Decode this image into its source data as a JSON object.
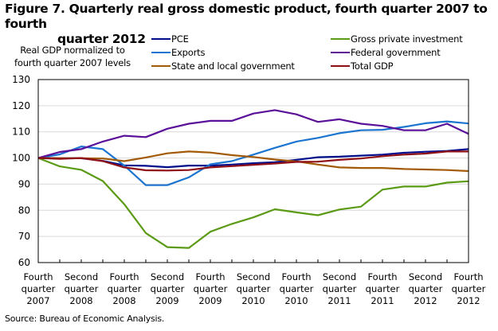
{
  "chart_data": {
    "type": "line",
    "title": "Figure 7. Quarterly real gross domestic product, fourth quarter 2007 to fourth quarter 2012",
    "title_line1": "Figure 7. Quarterly real gross domestic product, fourth quarter 2007 to fourth",
    "title_line2": "quarter 2012",
    "ylabel_line1": "Real GDP normalized to",
    "ylabel_line2": "fourth quarter 2007 levels",
    "xlabel": "",
    "ylim": [
      60,
      130
    ],
    "yticks": [
      60,
      70,
      80,
      90,
      100,
      110,
      120,
      130
    ],
    "grid": true,
    "legend_placement": "top",
    "x_tick_labels": [
      [
        "Fourth",
        "quarter",
        "2007"
      ],
      [
        "Second",
        "quarter",
        "2008"
      ],
      [
        "Fourth",
        "quarter",
        "2008"
      ],
      [
        "Second",
        "quarter",
        "2009"
      ],
      [
        "Fourth",
        "quarter",
        "2009"
      ],
      [
        "Second",
        "quarter",
        "2010"
      ],
      [
        "Fourth",
        "quarter",
        "2010"
      ],
      [
        "Second",
        "quarter",
        "2011"
      ],
      [
        "Fourth",
        "quarter",
        "2011"
      ],
      [
        "Second",
        "quarter",
        "2012"
      ],
      [
        "Fourth",
        "quarter",
        "2012"
      ]
    ],
    "x": [
      "2007Q4",
      "2008Q1",
      "2008Q2",
      "2008Q3",
      "2008Q4",
      "2009Q1",
      "2009Q2",
      "2009Q3",
      "2009Q4",
      "2010Q1",
      "2010Q2",
      "2010Q3",
      "2010Q4",
      "2011Q1",
      "2011Q2",
      "2011Q3",
      "2011Q4",
      "2012Q1",
      "2012Q2",
      "2012Q3",
      "2012Q4"
    ],
    "series": [
      {
        "name": "PCE",
        "color": "#000e8c",
        "values": [
          100,
          99.9,
          99.9,
          98.9,
          97.2,
          97.0,
          96.5,
          97.1,
          97.1,
          97.5,
          98.0,
          98.4,
          99.3,
          100.3,
          100.5,
          100.9,
          101.3,
          102.0,
          102.4,
          102.7,
          103.4
        ]
      },
      {
        "name": "Gross private investment",
        "color": "#5a9a15",
        "values": [
          100,
          96.8,
          95.5,
          91.2,
          82.3,
          71.3,
          65.9,
          65.6,
          71.8,
          74.8,
          77.3,
          80.4,
          79.2,
          78.1,
          80.3,
          81.4,
          87.9,
          89.1,
          89.1,
          90.6,
          91.1
        ]
      },
      {
        "name": "Exports",
        "color": "#1b75d0",
        "values": [
          100,
          101.4,
          104.4,
          103.4,
          97.1,
          89.6,
          89.6,
          92.6,
          97.6,
          98.8,
          101.3,
          103.9,
          106.3,
          107.7,
          109.5,
          110.6,
          110.8,
          111.9,
          113.3,
          114.0,
          113.2
        ]
      },
      {
        "name": "Federal government",
        "color": "#5b1099",
        "values": [
          100,
          102.3,
          103.4,
          106.3,
          108.5,
          108.0,
          111.2,
          113.1,
          114.2,
          114.2,
          117.0,
          118.3,
          116.7,
          113.8,
          114.8,
          113.1,
          112.3,
          110.6,
          110.6,
          113.1,
          109.2
        ]
      },
      {
        "name": "State and local government",
        "color": "#a35a08",
        "values": [
          100,
          99.9,
          99.9,
          99.8,
          98.8,
          100.2,
          101.8,
          102.5,
          102.1,
          101.1,
          100.4,
          99.4,
          98.7,
          97.5,
          96.4,
          96.2,
          96.2,
          95.8,
          95.6,
          95.4,
          95.0
        ]
      },
      {
        "name": "Total GDP",
        "color": "#8f0f16",
        "values": [
          100,
          99.7,
          100.0,
          98.8,
          96.4,
          95.3,
          95.2,
          95.4,
          96.4,
          96.9,
          97.4,
          97.9,
          98.5,
          98.6,
          99.3,
          99.8,
          100.7,
          101.3,
          101.7,
          102.5,
          102.5
        ]
      }
    ],
    "source": "Source: Bureau of Economic Analysis."
  }
}
